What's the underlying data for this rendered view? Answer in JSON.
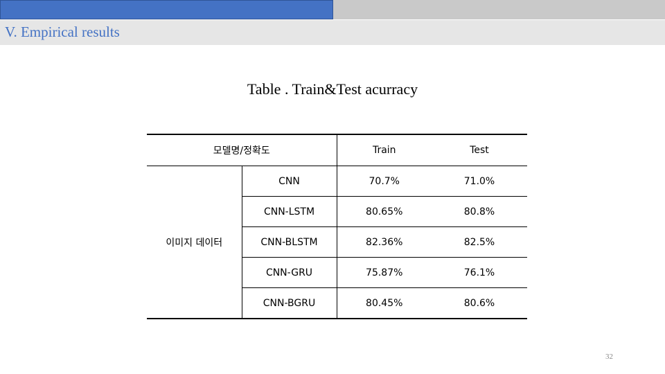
{
  "slide": {
    "section_title": "V. Empirical results",
    "caption": "Table . Train&Test acurracy",
    "page_number": "32"
  },
  "table": {
    "header": {
      "model_accuracy": "모델명/정확도",
      "train": "Train",
      "test": "Test"
    },
    "group_label": "이미지 데이터",
    "rows": [
      {
        "model": "CNN",
        "train": "70.7%",
        "test": "71.0%"
      },
      {
        "model": "CNN-LSTM",
        "train": "80.65%",
        "test": "80.8%"
      },
      {
        "model": "CNN-BLSTM",
        "train": "82.36%",
        "test": "82.5%"
      },
      {
        "model": "CNN-GRU",
        "train": "75.87%",
        "test": "76.1%"
      },
      {
        "model": "CNN-BGRU",
        "train": "80.45%",
        "test": "80.6%"
      }
    ]
  },
  "colors": {
    "accent": "#4472C4",
    "top_bar_gray": "#C9C9C9",
    "header_band": "#E6E6E6"
  }
}
